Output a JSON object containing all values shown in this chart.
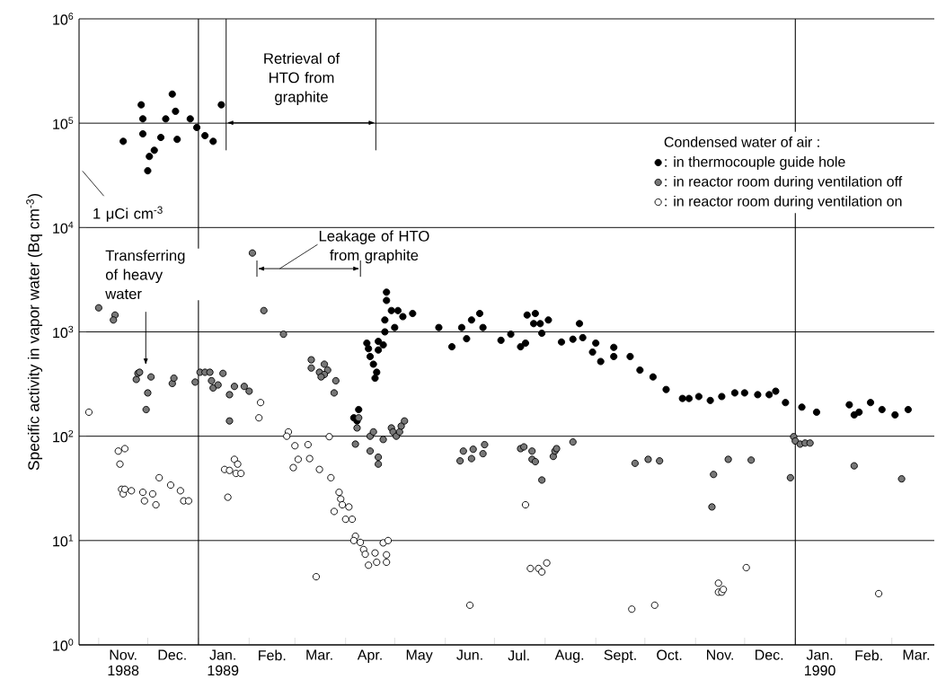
{
  "chart_data": {
    "type": "scatter",
    "ylabel": "Specific activity in vapor water (Bq cm$^{-3}$)",
    "legend_title": "Condensed water of air :",
    "log": "y",
    "grid": "y",
    "legend": "top right",
    "marker": "circle",
    "xlim": [
      "1988-10-20",
      "1990-03-27"
    ],
    "ylim": [
      1,
      1000000
    ],
    "yticks": [
      {
        "value": 1,
        "label": "10$^{0}$"
      },
      {
        "value": 10,
        "label": "10$^{1}$"
      },
      {
        "value": 100,
        "label": "10$^{2}$"
      },
      {
        "value": 1000,
        "label": "10$^{3}$"
      },
      {
        "value": 10000,
        "label": "10$^{4}$"
      },
      {
        "value": 100000,
        "label": "10$^{5}$"
      },
      {
        "value": 1000000,
        "label": "10$^{6}$"
      }
    ],
    "xticks": [
      {
        "value": "1988-11-01",
        "label": null
      },
      {
        "value": "1988-12-01",
        "label": null
      },
      {
        "value": "1989-01-01",
        "label": null
      },
      {
        "value": "1989-02-01",
        "label": null
      },
      {
        "value": "1989-03-01",
        "label": null
      },
      {
        "value": "1989-04-01",
        "label": null
      },
      {
        "value": "1989-05-01",
        "label": null
      },
      {
        "value": "1989-06-01",
        "label": null
      },
      {
        "value": "1989-07-01",
        "label": null
      },
      {
        "value": "1989-08-01",
        "label": null
      },
      {
        "value": "1989-09-01",
        "label": null
      },
      {
        "value": "1989-10-01",
        "label": null
      },
      {
        "value": "1989-11-01",
        "label": null
      },
      {
        "value": "1989-12-01",
        "label": null
      },
      {
        "value": "1990-01-01",
        "label": null
      },
      {
        "value": "1990-02-01",
        "label": null
      },
      {
        "value": "1990-03-01",
        "label": null
      },
      {
        "value": "1988-11-16",
        "label": "Nov.\n1988"
      },
      {
        "value": "1988-12-16",
        "label": "Dec."
      },
      {
        "value": "1989-01-16",
        "label": "Jan.\n1989"
      },
      {
        "value": "1989-02-15",
        "label": "Feb."
      },
      {
        "value": "1989-03-16",
        "label": "Mar."
      },
      {
        "value": "1989-04-16",
        "label": "Apr."
      },
      {
        "value": "1989-05-16",
        "label": "May"
      },
      {
        "value": "1989-06-16",
        "label": "Jun."
      },
      {
        "value": "1989-07-16",
        "label": "Jul."
      },
      {
        "value": "1989-08-16",
        "label": "Aug."
      },
      {
        "value": "1989-09-16",
        "label": "Sept."
      },
      {
        "value": "1989-10-16",
        "label": "Oct."
      },
      {
        "value": "1989-11-16",
        "label": "Nov."
      },
      {
        "value": "1989-12-16",
        "label": "Dec."
      },
      {
        "value": "1990-01-16",
        "label": "Jan.\n1990"
      },
      {
        "value": "1990-02-15",
        "label": "Feb."
      },
      {
        "value": "1990-03-16",
        "label": "Mar."
      }
    ],
    "ref_lines": [
      {
        "axis": "x",
        "value": "1989-01-01"
      },
      {
        "axis": "x",
        "value": "1990-01-01"
      }
    ],
    "annotations": [
      "Retrieval of HTO from graphite",
      "Leakage of HTO from graphite",
      "Transferring of heavy water",
      "1 μCi cm$^{-3}$"
    ],
    "series": [
      {
        "name": ": in thermocouple guide hole",
        "color": "#000000",
        "x": [
          "1988-11-16",
          "1988-11-27",
          "1988-11-28",
          "1988-11-28",
          "1988-12-01",
          "1988-12-02",
          "1988-12-05",
          "1988-12-09",
          "1988-12-12",
          "1988-12-16",
          "1988-12-18",
          "1988-12-19",
          "1988-12-27",
          "1988-12-31",
          "1989-01-05",
          "1989-01-10",
          "1989-01-15",
          "1989-04-06",
          "1989-04-08",
          "1989-04-09",
          "1989-04-14",
          "1989-04-15",
          "1989-04-16",
          "1989-04-18",
          "1989-04-19",
          "1989-04-20",
          "1989-04-21",
          "1989-04-21",
          "1989-04-24",
          "1989-04-25",
          "1989-04-25",
          "1989-04-26",
          "1989-04-26",
          "1989-04-29",
          "1989-05-01",
          "1989-05-03",
          "1989-05-06",
          "1989-05-12",
          "1989-05-28",
          "1989-06-05",
          "1989-06-11",
          "1989-06-14",
          "1989-06-17",
          "1989-06-22",
          "1989-06-24",
          "1989-07-05",
          "1989-07-11",
          "1989-07-17",
          "1989-07-20",
          "1989-07-21",
          "1989-07-25",
          "1989-07-26",
          "1989-07-29",
          "1989-07-30",
          "1989-08-03",
          "1989-08-11",
          "1989-08-18",
          "1989-08-22",
          "1989-08-24",
          "1989-08-30",
          "1989-09-01",
          "1989-09-04",
          "1989-09-12",
          "1989-09-12",
          "1989-09-22",
          "1989-09-28",
          "1989-10-06",
          "1989-10-14",
          "1989-10-24",
          "1989-10-28",
          "1989-11-03",
          "1989-11-10",
          "1989-11-17",
          "1989-11-25",
          "1989-12-01",
          "1989-12-09",
          "1989-12-16",
          "1989-12-20",
          "1989-12-26",
          "1990-01-05",
          "1990-01-14",
          "1990-02-03",
          "1990-02-06",
          "1990-02-09",
          "1990-02-16",
          "1990-02-23",
          "1990-03-03",
          "1990-03-11"
        ],
        "values": [
          67000,
          150000,
          110000,
          79000,
          35000,
          48000,
          55000,
          73000,
          110000,
          190000,
          130000,
          70000,
          110000,
          91000,
          76000,
          67000,
          150000,
          150,
          140,
          180,
          780,
          690,
          580,
          490,
          360,
          410,
          670,
          810,
          750,
          1000,
          1300,
          2400,
          2000,
          1600,
          1100,
          1600,
          1400,
          1500,
          1100,
          720,
          1100,
          860,
          1300,
          1500,
          1100,
          830,
          950,
          720,
          780,
          1450,
          1200,
          1500,
          1200,
          970,
          1300,
          800,
          850,
          1200,
          880,
          640,
          780,
          520,
          580,
          710,
          580,
          430,
          370,
          280,
          230,
          230,
          240,
          220,
          240,
          260,
          260,
          250,
          250,
          270,
          210,
          190,
          170,
          200,
          160,
          170,
          210,
          180,
          160,
          180
        ]
      },
      {
        "name": ": in reactor room during ventilation off",
        "color": "#777777",
        "x": [
          "1988-11-01",
          "1988-11-11",
          "1988-11-10",
          "1988-11-24",
          "1988-11-25",
          "1988-11-26",
          "1988-11-30",
          "1988-12-01",
          "1988-12-03",
          "1988-12-16",
          "1988-12-17",
          "1988-12-30",
          "1989-01-02",
          "1989-01-05",
          "1989-01-08",
          "1989-01-09",
          "1989-01-10",
          "1989-01-13",
          "1989-01-16",
          "1989-01-20",
          "1989-01-23",
          "1989-01-20",
          "1989-01-29",
          "1989-02-01",
          "1989-02-03",
          "1989-02-10",
          "1989-02-22",
          "1989-03-11",
          "1989-03-11",
          "1989-03-16",
          "1989-03-19",
          "1989-03-21",
          "1989-03-19",
          "1989-03-17",
          "1989-03-26",
          "1989-03-25",
          "1989-04-09",
          "1989-04-08",
          "1989-04-07",
          "1989-04-16",
          "1989-04-16",
          "1989-04-18",
          "1989-04-21",
          "1989-04-21",
          "1989-04-24",
          "1989-04-29",
          "1989-04-30",
          "1989-05-02",
          "1989-05-04",
          "1989-05-05",
          "1989-05-07",
          "1989-06-10",
          "1989-06-12",
          "1989-06-17",
          "1989-06-18",
          "1989-06-24",
          "1989-06-25",
          "1989-07-17",
          "1989-07-19",
          "1989-07-24",
          "1989-07-24",
          "1989-07-26",
          "1989-07-30",
          "1989-08-06",
          "1989-08-07",
          "1989-08-08",
          "1989-08-18",
          "1989-09-25",
          "1989-10-03",
          "1989-10-10",
          "1989-11-12",
          "1989-11-11",
          "1989-11-21",
          "1989-12-05",
          "1989-12-29",
          "1989-12-31",
          "1990-01-01",
          "1990-01-04",
          "1990-01-07",
          "1990-01-10",
          "1990-02-06",
          "1990-03-07"
        ],
        "values": [
          1700,
          1450,
          1300,
          350,
          400,
          410,
          180,
          260,
          370,
          320,
          360,
          330,
          410,
          410,
          410,
          340,
          290,
          310,
          400,
          250,
          300,
          140,
          300,
          270,
          5700,
          1600,
          950,
          540,
          450,
          410,
          490,
          430,
          390,
          370,
          340,
          260,
          150,
          120,
          84,
          72,
          100,
          110,
          63,
          54,
          93,
          120,
          110,
          100,
          110,
          125,
          140,
          58,
          72,
          61,
          75,
          68,
          83,
          76,
          79,
          72,
          60,
          57,
          38,
          64,
          72,
          76,
          88,
          55,
          60,
          58,
          43,
          21,
          60,
          59,
          40,
          99,
          90,
          84,
          86,
          86,
          52,
          39
        ]
      },
      {
        "name": ": in reactor room during ventilation on",
        "color": "#ffffff",
        "x": [
          "1988-10-26",
          "1988-11-13",
          "1988-11-17",
          "1988-11-14",
          "1988-11-15",
          "1988-11-16",
          "1988-11-17",
          "1988-11-21",
          "1988-11-28",
          "1988-11-29",
          "1988-12-04",
          "1988-12-06",
          "1988-12-08",
          "1988-12-15",
          "1988-12-21",
          "1988-12-23",
          "1988-12-26",
          "1989-01-17",
          "1989-01-20",
          "1989-01-23",
          "1989-01-25",
          "1989-01-24",
          "1989-01-27",
          "1989-01-19",
          "1989-02-08",
          "1989-02-07",
          "1989-02-25",
          "1989-02-24",
          "1989-03-01",
          "1989-03-03",
          "1989-02-28",
          "1989-03-09",
          "1989-03-10",
          "1989-03-16",
          "1989-03-22",
          "1989-03-23",
          "1989-03-28",
          "1989-03-29",
          "1989-03-30",
          "1989-04-03",
          "1989-03-25",
          "1989-04-01",
          "1989-04-05",
          "1989-04-07",
          "1989-04-06",
          "1989-04-10",
          "1989-04-12",
          "1989-04-13",
          "1989-04-15",
          "1989-04-19",
          "1989-04-20",
          "1989-04-24",
          "1989-04-27",
          "1989-04-26",
          "1989-04-26",
          "1989-03-14",
          "1989-06-16",
          "1989-07-20",
          "1989-07-23",
          "1989-07-28",
          "1989-07-30",
          "1989-08-02",
          "1989-09-23",
          "1989-10-07",
          "1989-11-15",
          "1989-11-15",
          "1989-11-17",
          "1989-11-18",
          "1989-12-02",
          "1990-02-21"
        ],
        "values": [
          170,
          72,
          76,
          54,
          31,
          28,
          31,
          30,
          29,
          24,
          28,
          22,
          40,
          34,
          30,
          24,
          24,
          48,
          47,
          60,
          54,
          44,
          44,
          26,
          210,
          150,
          110,
          100,
          81,
          60,
          50,
          83,
          61,
          48,
          99,
          40,
          29,
          25,
          22,
          21,
          19,
          16,
          16,
          11,
          10,
          9.6,
          8.2,
          7.4,
          5.8,
          7.6,
          6.2,
          9.5,
          10,
          7.3,
          6.2,
          4.5,
          2.4,
          22,
          5.4,
          5.4,
          5.0,
          6.1,
          2.2,
          2.4,
          3.9,
          3.2,
          3.2,
          3.4,
          5.5,
          3.1
        ]
      }
    ]
  }
}
